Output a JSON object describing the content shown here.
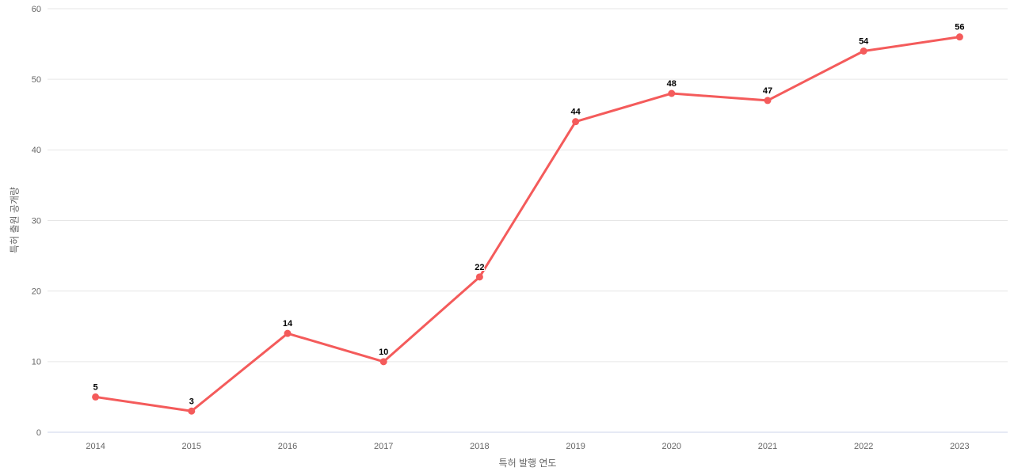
{
  "chart_data": {
    "type": "line",
    "title": "",
    "categories": [
      "2014",
      "2015",
      "2016",
      "2017",
      "2018",
      "2019",
      "2020",
      "2021",
      "2022",
      "2023"
    ],
    "series": [
      {
        "name": "특허 출원 공개량",
        "values": [
          5,
          3,
          14,
          10,
          22,
          44,
          48,
          47,
          54,
          56
        ]
      }
    ],
    "xlabel": "특허 발행 연도",
    "ylabel": "특허 출원 공개량",
    "ylim": [
      0,
      60
    ],
    "yticks": [
      0,
      10,
      20,
      30,
      40,
      50,
      60
    ],
    "grid": true,
    "legend_position": "none",
    "data_labels": true,
    "marker": "circle"
  },
  "colors": {
    "series": "#f45b5b",
    "gridline": "#e6e6e6",
    "axis_line": "#ccd6eb",
    "tick_label": "#666666",
    "axis_title": "#666666",
    "data_label": "#000000",
    "background": "#ffffff"
  }
}
